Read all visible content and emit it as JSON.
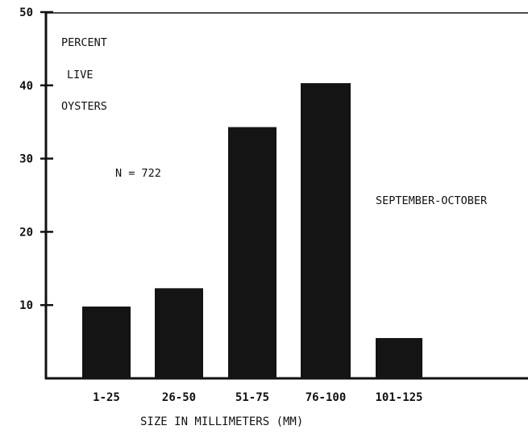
{
  "chart_data": {
    "type": "bar",
    "categories": [
      "1-25",
      "26-50",
      "51-75",
      "76-100",
      "101-125"
    ],
    "values": [
      9.8,
      12.3,
      34.3,
      40.3,
      5.5
    ],
    "title": "",
    "xlabel": "SIZE IN MILLIMETERS (MM)",
    "ylabel": "",
    "ylim": [
      0,
      50
    ],
    "yticks": [
      10,
      20,
      30,
      40,
      50
    ],
    "grid": false,
    "annotations": {
      "ylabel_lines": [
        "PERCENT",
        "LIVE",
        "OYSTERS"
      ],
      "sample_size": "N = 722",
      "season": "SEPTEMBER-OCTOBER"
    },
    "colors": {
      "bar": "#141414",
      "axis": "#111111"
    }
  }
}
